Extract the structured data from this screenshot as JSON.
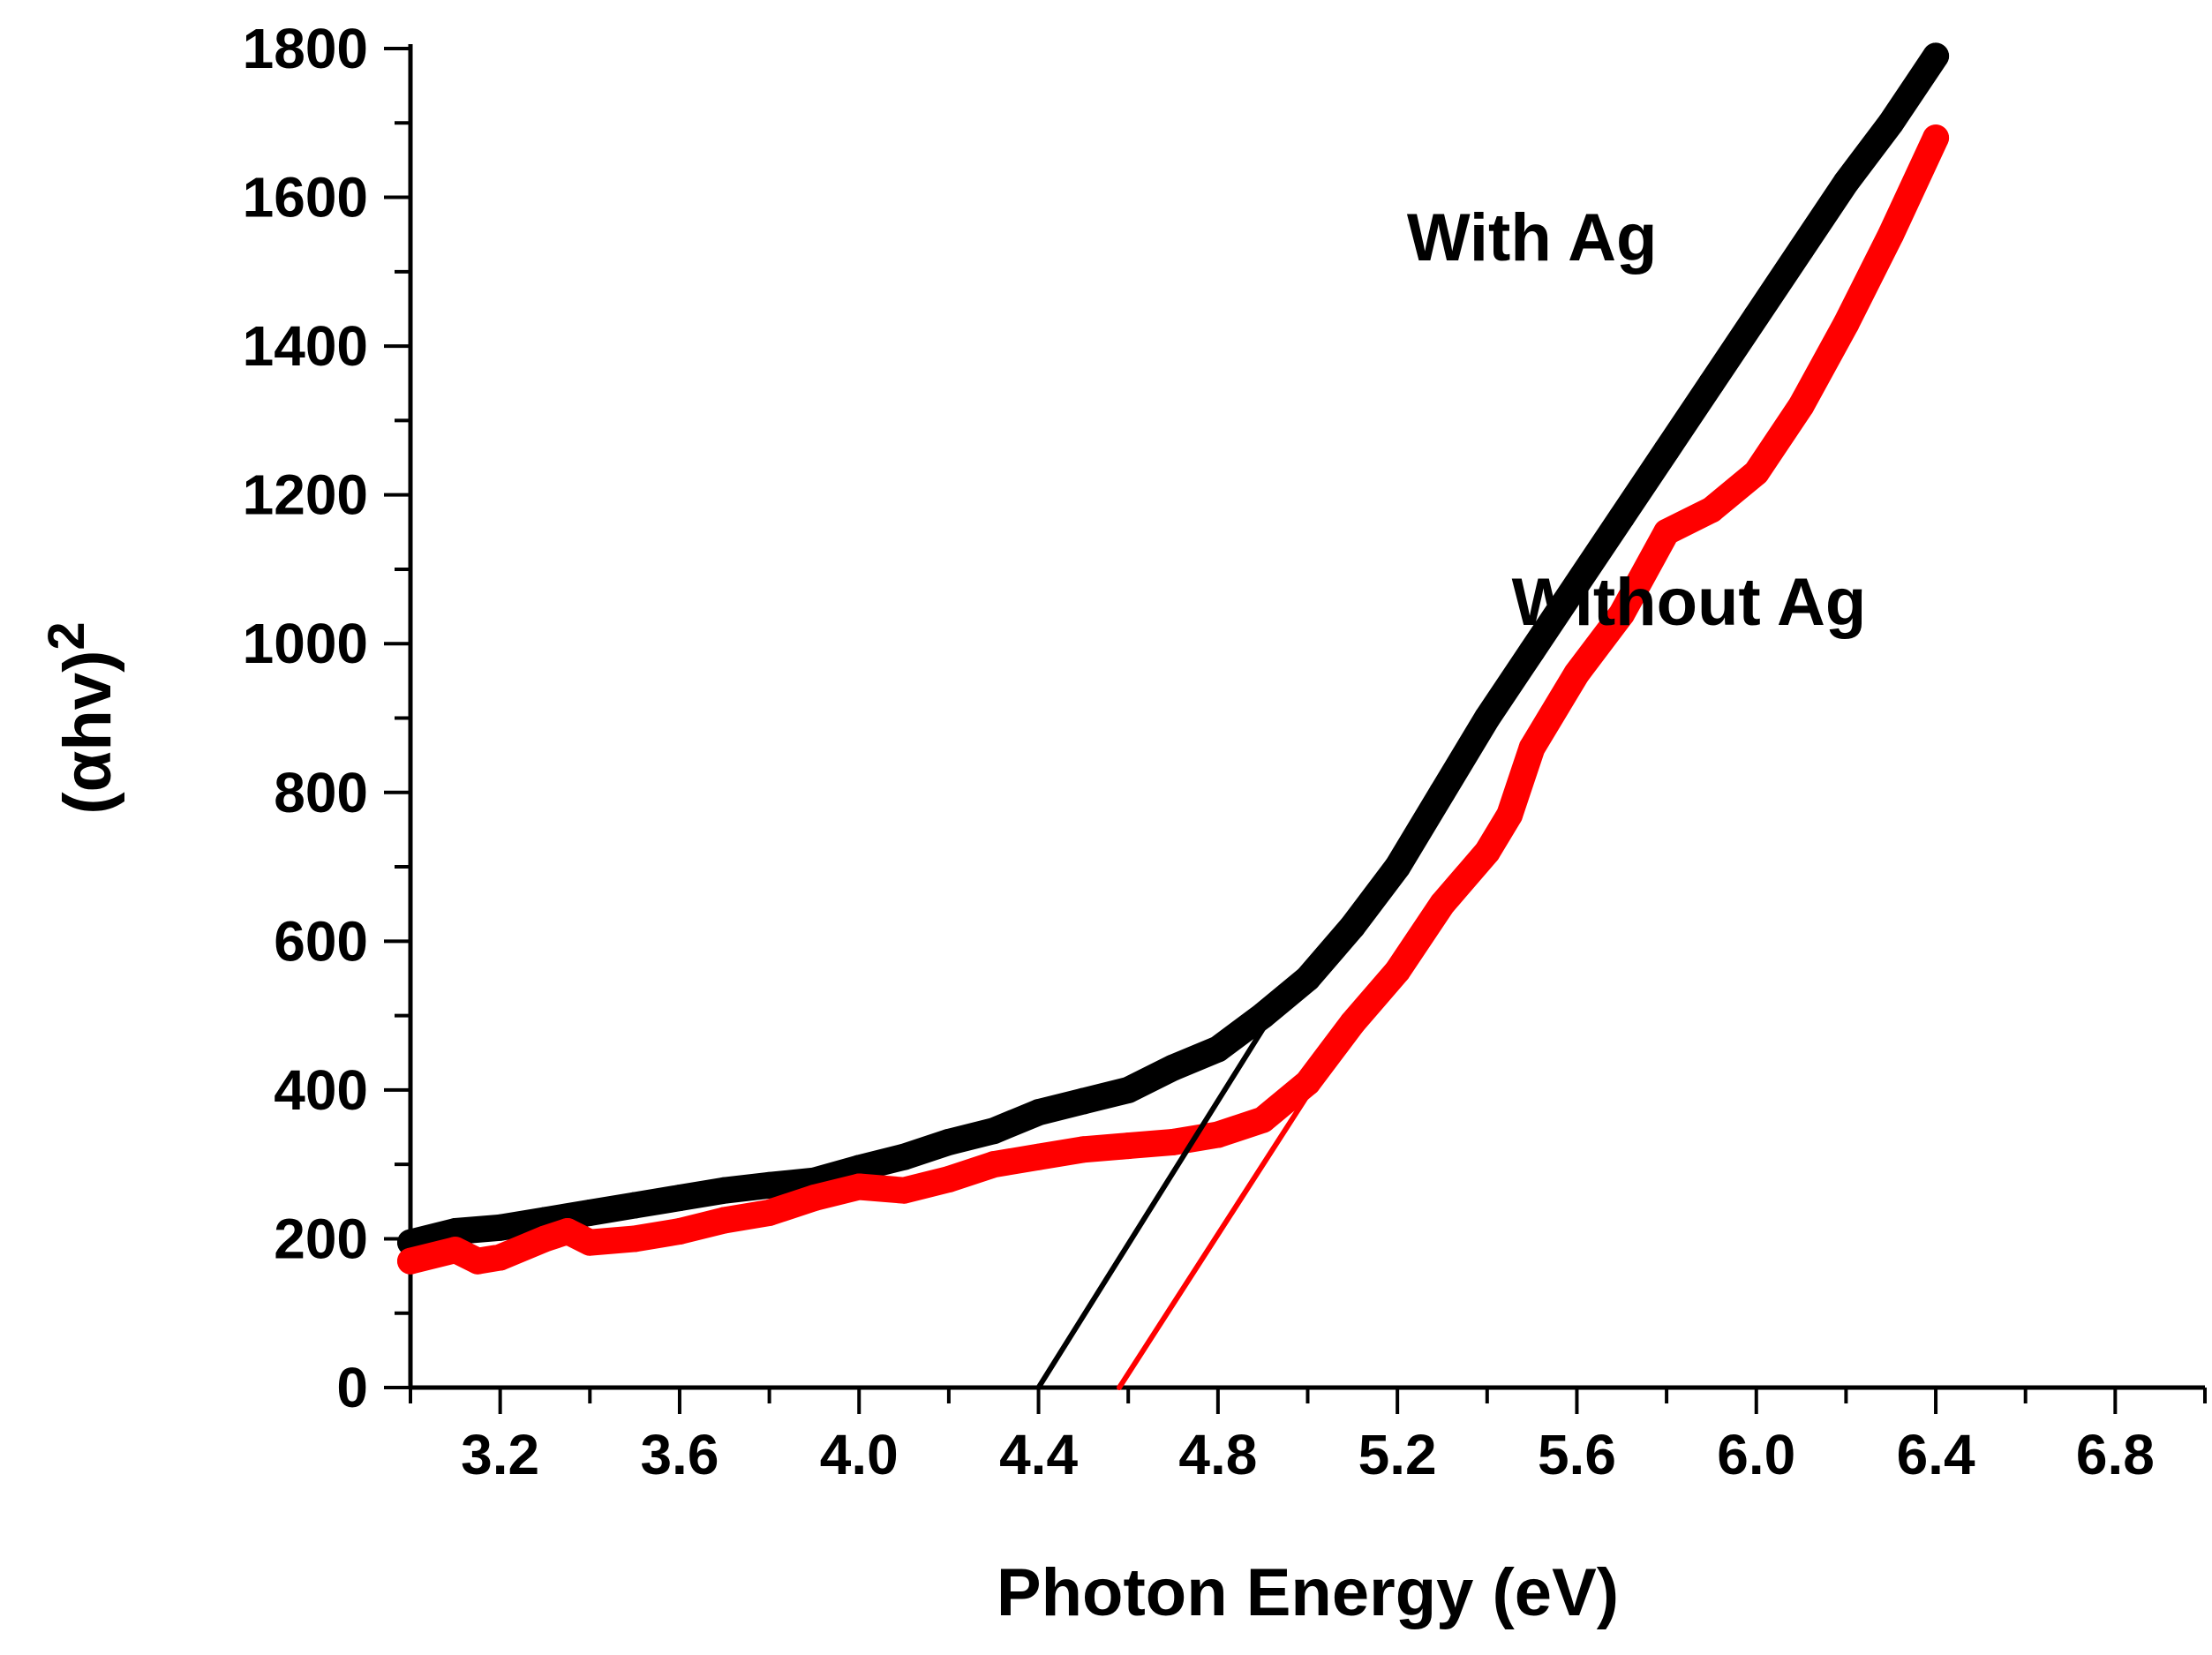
{
  "chart_data": {
    "type": "line",
    "title": "",
    "xlabel": "Photon Energy (eV)",
    "ylabel_main": "(αhv)",
    "ylabel_sup": "2",
    "xlim": [
      3.0,
      7.0
    ],
    "ylim": [
      0,
      1800
    ],
    "x_ticks": [
      3.2,
      3.6,
      4.0,
      4.4,
      4.8,
      5.2,
      5.6,
      6.0,
      6.4,
      6.8
    ],
    "x_tick_labels": [
      "3.2",
      "3.6",
      "4.0",
      "4.4",
      "4.8",
      "5.2",
      "5.6",
      "6.0",
      "6.4",
      "6.8"
    ],
    "y_ticks": [
      0,
      200,
      400,
      600,
      800,
      1000,
      1200,
      1400,
      1600,
      1800
    ],
    "y_tick_labels": [
      "0",
      "200",
      "400",
      "600",
      "800",
      "1000",
      "1200",
      "1400",
      "1600",
      "1800"
    ],
    "grid": false,
    "series": [
      {
        "name": "With Ag",
        "color": "#000000",
        "x": [
          3.0,
          3.1,
          3.2,
          3.3,
          3.4,
          3.5,
          3.6,
          3.7,
          3.8,
          3.9,
          4.0,
          4.1,
          4.2,
          4.3,
          4.4,
          4.5,
          4.6,
          4.7,
          4.8,
          4.9,
          5.0,
          5.1,
          5.2,
          5.3,
          5.4,
          5.5,
          5.6,
          5.7,
          5.8,
          5.9,
          6.0,
          6.1,
          6.2,
          6.3,
          6.4
        ],
        "y": [
          195,
          210,
          215,
          225,
          235,
          245,
          255,
          265,
          272,
          278,
          295,
          310,
          330,
          345,
          370,
          385,
          400,
          430,
          455,
          500,
          550,
          620,
          700,
          800,
          900,
          990,
          1080,
          1170,
          1260,
          1350,
          1440,
          1530,
          1620,
          1700,
          1790
        ]
      },
      {
        "name": "Without Ag",
        "color": "#ff0000",
        "x": [
          3.0,
          3.1,
          3.15,
          3.2,
          3.3,
          3.35,
          3.4,
          3.5,
          3.6,
          3.7,
          3.8,
          3.9,
          4.0,
          4.1,
          4.2,
          4.3,
          4.4,
          4.5,
          4.6,
          4.7,
          4.8,
          4.9,
          5.0,
          5.1,
          5.2,
          5.3,
          5.4,
          5.45,
          5.5,
          5.6,
          5.7,
          5.8,
          5.9,
          6.0,
          6.1,
          6.2,
          6.3,
          6.4
        ],
        "y": [
          170,
          185,
          170,
          175,
          200,
          210,
          195,
          200,
          210,
          225,
          235,
          255,
          270,
          265,
          280,
          300,
          310,
          320,
          325,
          330,
          340,
          360,
          410,
          490,
          560,
          650,
          720,
          770,
          860,
          960,
          1040,
          1150,
          1180,
          1230,
          1320,
          1430,
          1550,
          1680
        ]
      }
    ],
    "fit_lines": [
      {
        "name": "With Ag fit",
        "color": "#000000",
        "x": [
          4.4,
          4.95
        ],
        "y": [
          0,
          530
        ]
      },
      {
        "name": "Without Ag fit",
        "color": "#ff0000",
        "x": [
          4.58,
          5.05
        ],
        "y": [
          0,
          440
        ]
      }
    ],
    "annotations": [
      {
        "text": "With Ag",
        "x": 5.5,
        "y": 1515
      },
      {
        "text": "Without Ag",
        "x": 5.85,
        "y": 1025
      }
    ]
  }
}
